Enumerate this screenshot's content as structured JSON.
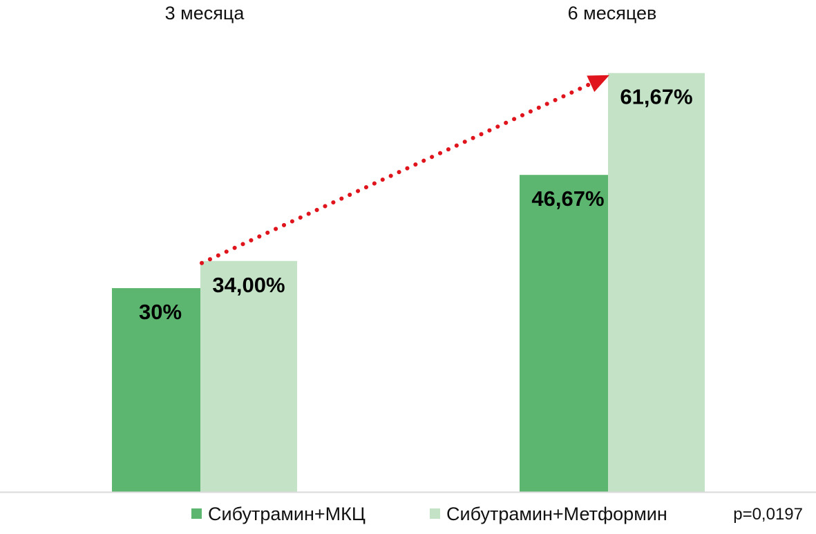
{
  "chart_data": {
    "type": "bar",
    "categories": [
      "3 месяца",
      "6 месяцев"
    ],
    "series": [
      {
        "name": "Сибутрамин+МКЦ",
        "values": [
          30,
          46.67
        ],
        "labels": [
          "30%",
          "46,67%"
        ],
        "color": "#5db670"
      },
      {
        "name": "Сибутрамин+Метформин",
        "values": [
          34.0,
          61.67
        ],
        "labels": [
          "34,00%",
          "61,67%"
        ],
        "color": "#c3e2c6"
      }
    ],
    "ylim": [
      0,
      65
    ],
    "grid": false,
    "legend_position": "bottom",
    "annotations": {
      "trend_arrow": {
        "from_series": 1,
        "from_category": 0,
        "to_category": 1,
        "color": "#e0141c",
        "style": "dotted"
      },
      "note": "p=0,0197"
    },
    "axis_line_color": "#d9d9d9"
  }
}
